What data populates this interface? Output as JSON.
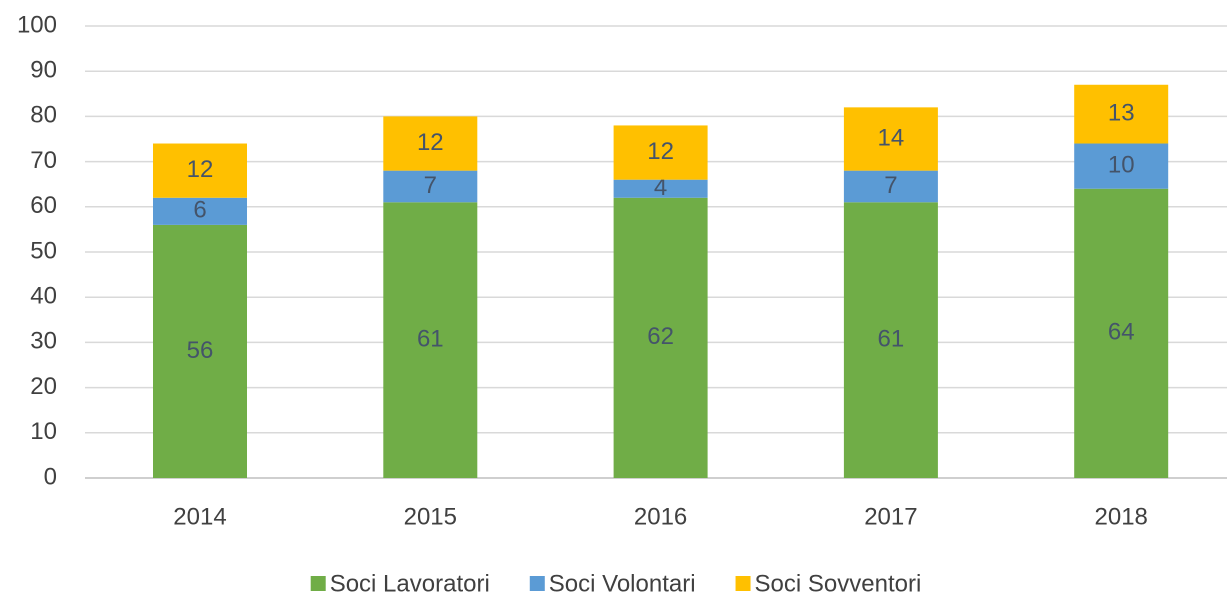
{
  "chart_data": {
    "type": "stacked_bar",
    "categories": [
      "2014",
      "2015",
      "2016",
      "2017",
      "2018"
    ],
    "series": [
      {
        "name": "Soci Lavoratori",
        "color": "#70ad47",
        "values": [
          56,
          61,
          62,
          61,
          64
        ]
      },
      {
        "name": "Soci Volontari",
        "color": "#5b9bd5",
        "values": [
          6,
          7,
          4,
          7,
          10
        ]
      },
      {
        "name": "Soci Sovventori",
        "color": "#ffc000",
        "values": [
          12,
          12,
          12,
          14,
          13
        ]
      }
    ],
    "ylim": [
      0,
      100
    ],
    "yticks": [
      0,
      10,
      20,
      30,
      40,
      50,
      60,
      70,
      80,
      90,
      100
    ],
    "grid": true,
    "legend": "bottom"
  }
}
